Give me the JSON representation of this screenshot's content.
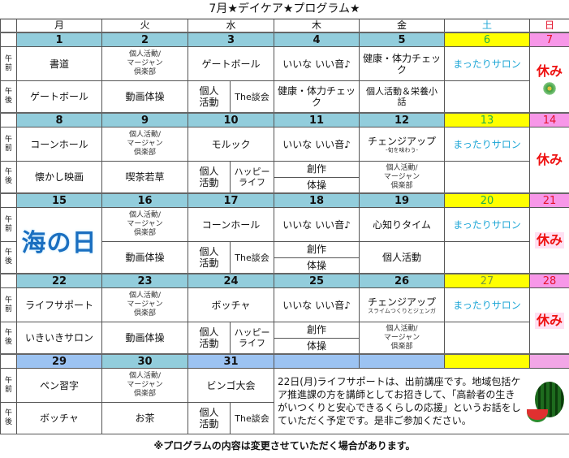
{
  "title": "7月★デイケア★プログラム★",
  "weekdays": [
    "月",
    "火",
    "水",
    "木",
    "金",
    "土",
    "日"
  ],
  "period_labels": {
    "am": "午\n前",
    "pm": "午\n後"
  },
  "colors": {
    "date_row": "#92cddc",
    "saturday": "#ffff00",
    "sunday": "#f797e8",
    "salon_text": "#1da6d6",
    "holiday_text": "#ee1111"
  },
  "weeks": [
    {
      "dates": [
        "1",
        "2",
        "3",
        "4",
        "5",
        "6",
        "7"
      ],
      "am": [
        "書道",
        {
          "t": "個人活動/\nマージャン\n倶楽部",
          "small": true
        },
        "ゲートボール",
        "いいな いい音♪",
        "健康・体力チェック",
        {
          "t": "まったりサロン",
          "kind": "salon"
        },
        {
          "t": "休み",
          "kind": "holiday",
          "icon": "tanabata-icon"
        }
      ],
      "pm": [
        "ゲートボール",
        "動画体操",
        {
          "split": [
            "個人\n活動",
            "The談会"
          ]
        },
        "健康・体力チェック",
        {
          "t": "個人活動＆栄養小\n話",
          "small2": true
        },
        ""
      ]
    },
    {
      "dates": [
        "8",
        "9",
        "10",
        "11",
        "12",
        "13",
        "14"
      ],
      "am": [
        "コーンホール",
        {
          "t": "個人活動/\nマージャン\n倶楽部",
          "small": true
        },
        "モルック",
        "いいな いい音♪",
        {
          "t": "チェンジアップ",
          "sub": "-旬を味わう-"
        },
        {
          "t": "まったりサロン",
          "kind": "salon"
        },
        {
          "t": "休み",
          "kind": "holiday"
        }
      ],
      "pm": [
        "懐かし映画",
        "喫茶若草",
        {
          "split": [
            "個人\n活動",
            "ハッピー\nライフ"
          ]
        },
        {
          "stack": [
            "創作",
            "体操"
          ]
        },
        {
          "t": "個人活動/\nマージャン\n倶楽部",
          "small": true
        },
        ""
      ]
    },
    {
      "dates": [
        "15",
        "16",
        "17",
        "18",
        "19",
        "20",
        "21"
      ],
      "am": [
        {
          "t": "海の日",
          "kind": "logo"
        },
        {
          "t": "個人活動/\nマージャン\n倶楽部",
          "small": true
        },
        "コーンホール",
        "いいな いい音♪",
        "心知りタイム",
        {
          "t": "まったりサロン",
          "kind": "salon"
        },
        {
          "t": "休み",
          "kind": "holiday",
          "pink": true
        }
      ],
      "pm": [
        "動画体操",
        {
          "split": [
            "個人\n活動",
            "The談会"
          ]
        },
        {
          "stack": [
            "創作",
            "体操"
          ]
        },
        "個人活動",
        ""
      ]
    },
    {
      "dates": [
        "22",
        "23",
        "24",
        "25",
        "26",
        "27",
        "28"
      ],
      "am": [
        "ライフサポート",
        {
          "t": "個人活動/\nマージャン\n倶楽部",
          "small": true
        },
        "ボッチャ",
        "いいな いい音♪",
        {
          "t": "チェンジアップ",
          "sub": "スライムつくりとジェンガ"
        },
        {
          "t": "まったりサロン",
          "kind": "salon"
        },
        {
          "t": "休み",
          "kind": "holiday",
          "pink": true
        }
      ],
      "pm": [
        "いきいきサロン",
        "動画体操",
        {
          "split": [
            "個人\n活動",
            "ハッピー\nライフ"
          ]
        },
        {
          "stack": [
            "創作",
            "体操"
          ]
        },
        {
          "t": "個人活動/\nマージャン\n倶楽部",
          "small": true
        },
        ""
      ]
    },
    {
      "dates": [
        "29",
        "30",
        "31",
        "",
        "",
        "",
        ""
      ],
      "am": [
        "ペン習字",
        {
          "t": "個人活動/\nマージャン\n倶楽部",
          "small": true
        },
        "ビンゴ大会",
        {
          "t": "22日(月)ライフサポートは、出前講座です。地域包括ケア推進課の方を講師としてお招きして、「高齢者の生きがいつくりと安心できるくらしの応援」というお話をしていただく予定です。是非ご参加ください。",
          "kind": "note",
          "icon": "watermelon-icon"
        }
      ],
      "pm": [
        "ボッチャ",
        "お茶",
        {
          "split": [
            "個人\n活動",
            "The談会"
          ]
        }
      ]
    }
  ],
  "footer": "※プログラムの内容は変更させていただく場合があります。"
}
